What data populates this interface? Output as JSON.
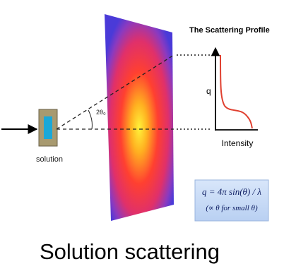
{
  "title": "The Scattering Profile",
  "axes": {
    "y_label": "q",
    "x_label": "Intensity"
  },
  "sample_label": "solution",
  "angle_label": "2θ₀",
  "formula": {
    "line1": "q = 4π sin(θ) / λ",
    "line2": "(∝ θ for small θ)"
  },
  "caption": "Solution scattering"
}
